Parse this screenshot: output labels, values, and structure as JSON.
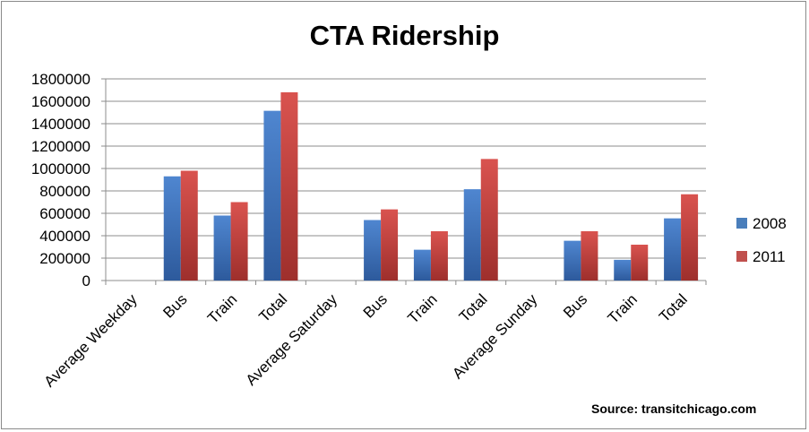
{
  "chart_data": {
    "type": "bar",
    "title": "CTA Ridership",
    "categories": [
      "Average Weekday",
      "Bus",
      "Train",
      "Total",
      "Average Saturday",
      "Bus",
      "Train",
      "Total",
      "Average Sunday",
      "Bus",
      "Train",
      "Total"
    ],
    "series": [
      {
        "name": "2008",
        "color": "#4a7ebb",
        "values": [
          0,
          930000,
          580000,
          1515000,
          0,
          540000,
          275000,
          815000,
          0,
          355000,
          185000,
          555000
        ]
      },
      {
        "name": "2011",
        "color": "#c0504d",
        "values": [
          0,
          980000,
          700000,
          1680000,
          0,
          635000,
          440000,
          1085000,
          0,
          440000,
          320000,
          770000
        ]
      }
    ],
    "ylim": [
      0,
      1800000
    ],
    "yticks": [
      "0",
      "200000",
      "400000",
      "600000",
      "800000",
      "1000000",
      "1200000",
      "1400000",
      "1600000",
      "1800000"
    ],
    "grid": true,
    "legend": "right",
    "source": "Source: transitchicago.com"
  }
}
